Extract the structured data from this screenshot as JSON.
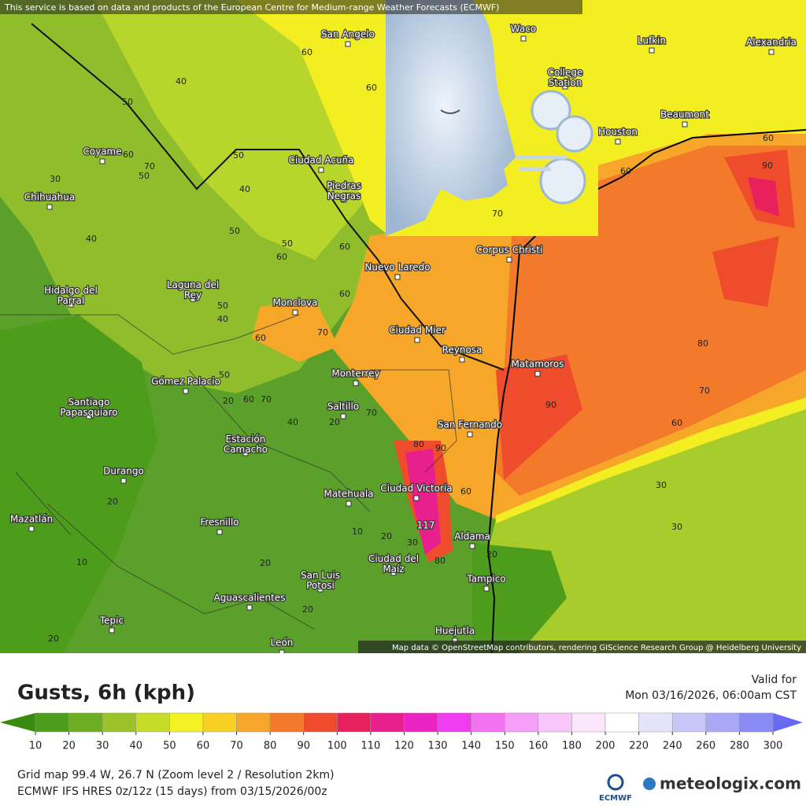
{
  "notice": "This service is based on data and products of the European Centre for Medium-range Weather Forecasts (ECMWF)",
  "map": {
    "cities": [
      "San Angelo",
      "Waco",
      "Lufkin",
      "Alexandria",
      "College Station",
      "Houston",
      "Beaumont",
      "Coyame",
      "Ciudad Acuña",
      "Piedras Negras",
      "Chihuahua",
      "Corpus Christi",
      "Nuevo Laredo",
      "Hidalgo del Parral",
      "Laguna del Rey",
      "Monclova",
      "Ciudad Mier",
      "Reynosa",
      "Matamoros",
      "Monterrey",
      "Gómez Palacio",
      "Saltillo",
      "Santiago Papasquiaro",
      "San Fernando",
      "Estación Camacho",
      "Durango",
      "Ciudad Victoria",
      "Matehuala",
      "Mazatlán",
      "Fresnillo",
      "Aldama",
      "Ciudad del Maíz",
      "San Luis Potosí",
      "Tampico",
      "Aguascalientes",
      "Tepic",
      "Huejutla",
      "León"
    ],
    "contour_labels": [
      60,
      40,
      50,
      60,
      60,
      70,
      50,
      30,
      50,
      40,
      40,
      50,
      50,
      60,
      60,
      70,
      50,
      40,
      60,
      60,
      70,
      50,
      60,
      70,
      20,
      40,
      20,
      70,
      90,
      80,
      70,
      60,
      90,
      30,
      30,
      60,
      80,
      90,
      30,
      20,
      80,
      20,
      10,
      20,
      10,
      20,
      20,
      20,
      60,
      60
    ],
    "peak_label": 117,
    "attribution": "Map data © OpenStreetMap contributors, rendering GIScience Research Group @ Heidelberg University"
  },
  "legend": {
    "title": "Gusts, 6h (kph)",
    "valid_label": "Valid for",
    "valid_time": "Mon 03/16/2026, 06:00am CST",
    "ticks": [
      10,
      20,
      30,
      40,
      50,
      60,
      70,
      80,
      90,
      100,
      110,
      120,
      130,
      140,
      150,
      160,
      180,
      200,
      220,
      240,
      260,
      280,
      300
    ],
    "colors": [
      "#3a8a10",
      "#4e9c1c",
      "#6cad22",
      "#9cc42a",
      "#c6dc2a",
      "#f2f224",
      "#f8d024",
      "#f6a628",
      "#f27a2a",
      "#ee4c2c",
      "#e8205c",
      "#e8208e",
      "#ea24c2",
      "#ee3cee",
      "#f272f2",
      "#f59ef5",
      "#f8c6f8",
      "#fbe6fb",
      "#ffffff",
      "#e4e4fb",
      "#c8c8f8",
      "#a8a8f6",
      "#8a8af4",
      "#6a6af0"
    ]
  },
  "footer": {
    "grid_info": "Grid map 99.4 W, 26.7 N (Zoom level 2 / Resolution 2km)",
    "model_info": "ECMWF IFS HRES 0z/12z (15 days) from  03/15/2026/00z",
    "ecmwf_logo": "ECMWF",
    "brand": "meteologix.com"
  }
}
